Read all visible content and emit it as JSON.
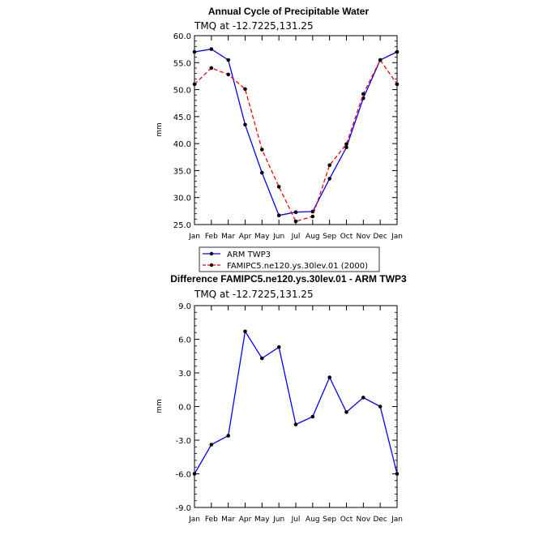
{
  "chart_data": [
    {
      "type": "line",
      "title": "Annual Cycle of Precipitable Water",
      "subtitle": "TMQ at -12.7225,131.25",
      "xlabel": "",
      "ylabel": "mm",
      "categories": [
        "Jan",
        "Feb",
        "Mar",
        "Apr",
        "May",
        "Jun",
        "Jul",
        "Aug",
        "Sep",
        "Oct",
        "Nov",
        "Dec",
        "Jan"
      ],
      "yticks": [
        "25.0",
        "30.0",
        "35.0",
        "40.0",
        "45.0",
        "50.0",
        "55.0",
        "60.0"
      ],
      "ylim": [
        25,
        60
      ],
      "grid": false,
      "legend_position": "bottom",
      "series": [
        {
          "name": "ARM TWP3",
          "color": "#0000ff",
          "dash": "solid",
          "values": [
            57.0,
            57.5,
            55.5,
            43.5,
            34.6,
            26.7,
            27.3,
            27.4,
            33.5,
            39.3,
            48.4,
            55.5,
            57.0
          ]
        },
        {
          "name": "FAMIPC5.ne120.ys.30lev.01 (2000)",
          "color": "#ff0000",
          "dash": "dashed",
          "values": [
            51.0,
            54.0,
            52.8,
            50.1,
            38.9,
            32.0,
            25.6,
            26.5,
            36.0,
            39.9,
            49.2,
            55.5,
            51.0
          ]
        }
      ]
    },
    {
      "type": "line",
      "title": "Difference FAMIPC5.ne120.ys.30lev.01 - ARM TWP3",
      "subtitle": "TMQ at -12.7225,131.25",
      "xlabel": "",
      "ylabel": "mm",
      "categories": [
        "Jan",
        "Feb",
        "Mar",
        "Apr",
        "May",
        "Jun",
        "Jul",
        "Aug",
        "Sep",
        "Oct",
        "Nov",
        "Dec",
        "Jan"
      ],
      "yticks": [
        "-9.0",
        "-6.0",
        "-3.0",
        "0.0",
        "3.0",
        "6.0",
        "9.0"
      ],
      "ylim": [
        -9,
        9
      ],
      "grid": false,
      "series": [
        {
          "color": "#0000ff",
          "dash": "solid",
          "values": [
            -6.0,
            -3.4,
            -2.6,
            6.7,
            4.3,
            5.3,
            -1.6,
            -0.9,
            2.6,
            -0.5,
            0.8,
            0.0,
            -6.0
          ]
        }
      ]
    }
  ]
}
